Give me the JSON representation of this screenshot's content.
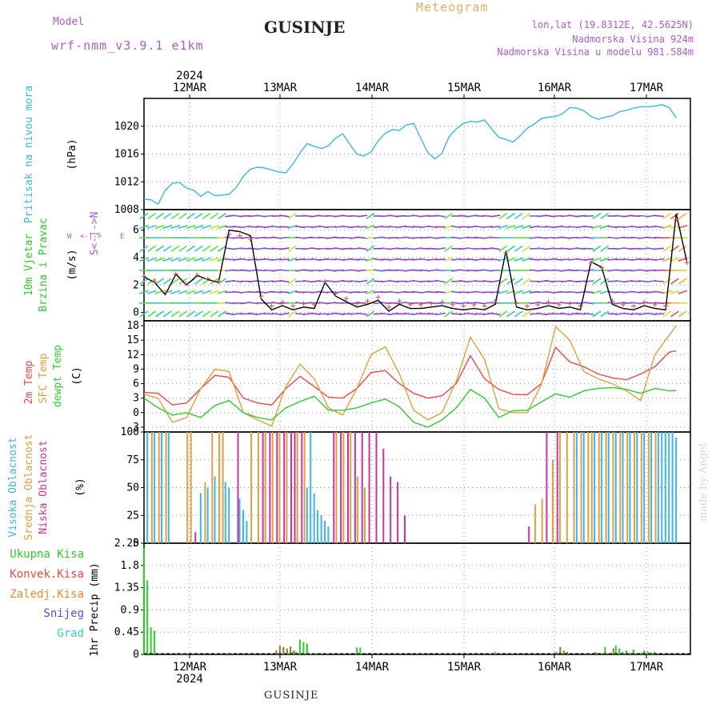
{
  "header": {
    "title": "GUSINJE",
    "meteogram_label": "Meteogram",
    "model_label": "Model",
    "model_name": "wrf-nmm_v3.9.1 e1km",
    "info_lines": [
      "lon,lat (19.8312E, 42.5625N)",
      "Nadmorska Visina 924m",
      "Nadmorska Visina u modelu 981.584m"
    ]
  },
  "footer": {
    "location": "GUSINJE",
    "credit": "made by Angel"
  },
  "time_axis": {
    "year_label": "2024",
    "day_labels": [
      "12MAR",
      "13MAR",
      "14MAR",
      "15MAR",
      "16MAR",
      "17MAR"
    ]
  },
  "panels": {
    "pressure": {
      "labels": [
        "Pritisak na nivou mora",
        "(hPa)"
      ],
      "colors": [
        "#3fb5e6",
        "#000000"
      ]
    },
    "wind": {
      "labels": [
        "10m Vjetar",
        "Brzina i Pravac",
        "(m/s)"
      ],
      "colors": [
        "#2ecc2e",
        "#2ecc2e",
        "#000000"
      ],
      "compass": [
        "W",
        "<-|->",
        "E",
        "S<-|->N"
      ]
    },
    "temp": {
      "labels": [
        "2m Temp",
        "SFC Temp",
        "dewpt Temp",
        "(C)"
      ],
      "colors": [
        "#f04848",
        "#e0a040",
        "#2ecc2e",
        "#000000"
      ]
    },
    "cloud": {
      "labels": [
        "Visoka Oblacnost",
        "Srednja Oblacnost",
        "Niska Oblacnost",
        "(%)"
      ],
      "colors": [
        "#3fb5e6",
        "#e0a040",
        "#d030a0",
        "#000000"
      ]
    },
    "precip": {
      "labels": [
        "1hr Precip (mm)"
      ],
      "legend": [
        "Ukupna Kisa",
        "Konvek.Kisa",
        "Zaledj.Kisa",
        "Snijeg",
        "Grad"
      ],
      "legend_colors": [
        "#2ecc2e",
        "#f04848",
        "#f08a30",
        "#5050e0",
        "#40c8c8"
      ]
    }
  },
  "chart_data": [
    {
      "type": "line",
      "name": "pressure",
      "ylim": [
        1008,
        1024
      ],
      "yticks": [
        "1008",
        "1012",
        "1016",
        "1020"
      ],
      "x_hours": [
        0,
        2,
        4,
        6,
        8,
        10,
        12,
        14,
        16,
        18,
        20,
        22,
        24,
        26,
        28,
        30,
        32,
        34,
        36,
        38,
        40,
        42,
        44,
        46,
        48,
        50,
        52,
        54,
        56,
        58,
        60,
        62,
        64,
        66,
        68,
        70,
        72,
        74,
        76,
        78,
        80,
        82,
        84,
        86,
        88,
        90,
        92,
        94,
        96,
        98,
        100,
        102,
        104,
        106,
        108,
        110,
        112,
        114,
        116,
        118,
        120,
        122,
        124,
        126,
        128,
        130,
        132,
        134,
        136,
        138,
        140,
        142,
        144,
        146,
        148,
        150
      ],
      "series": [
        {
          "name": "Pritisak na nivou mora",
          "color": "#3fb5e6",
          "values": [
            1009.5,
            1009.4,
            1008.8,
            1010.8,
            1011.8,
            1011.9,
            1011.1,
            1010.8,
            1009.9,
            1010.6,
            1010.0,
            1010.1,
            1010.2,
            1011.2,
            1012.8,
            1013.8,
            1014.1,
            1014.0,
            1013.7,
            1013.4,
            1013.3,
            1014.6,
            1016.2,
            1017.5,
            1017.1,
            1016.8,
            1017.2,
            1018.3,
            1018.9,
            1017.4,
            1016.0,
            1015.7,
            1016.3,
            1017.9,
            1019.0,
            1019.5,
            1019.4,
            1020.2,
            1020.4,
            1018.3,
            1016.2,
            1015.3,
            1016.1,
            1018.5,
            1019.6,
            1020.4,
            1020.7,
            1020.6,
            1020.9,
            1019.6,
            1018.4,
            1018.1,
            1017.7,
            1018.6,
            1019.7,
            1020.3,
            1021.1,
            1021.3,
            1021.4,
            1021.8,
            1022.7,
            1022.6,
            1022.2,
            1021.4,
            1021.0,
            1021.3,
            1021.5,
            1022.1,
            1022.3,
            1022.6,
            1022.8,
            1022.8,
            1022.9,
            1023.1,
            1022.7,
            1021.2
          ]
        }
      ]
    },
    {
      "type": "line",
      "name": "wind",
      "ylim": [
        -0.6,
        7.5
      ],
      "yticks": [
        "0",
        "2",
        "4",
        "6"
      ],
      "x_hours": [
        0,
        3,
        6,
        9,
        12,
        15,
        18,
        21,
        24,
        27,
        30,
        33,
        36,
        39,
        42,
        45,
        48,
        51,
        54,
        57,
        60,
        63,
        66,
        69,
        72,
        75,
        78,
        81,
        84,
        87,
        90,
        93,
        96,
        99,
        102,
        105,
        108,
        111,
        114,
        117,
        120,
        123,
        126,
        129,
        132,
        135,
        138,
        141,
        144,
        147,
        150,
        153
      ],
      "series": [
        {
          "name": "10m Vjetar",
          "color": "#000000",
          "values": [
            2.6,
            2.2,
            1.3,
            2.8,
            2.0,
            2.7,
            2.4,
            2.2,
            6.0,
            5.9,
            5.6,
            1.0,
            0.2,
            0.5,
            0.2,
            0.4,
            0.3,
            2.2,
            1.2,
            0.8,
            0.4,
            0.6,
            0.9,
            0.1,
            0.6,
            0.3,
            0.3,
            0.4,
            0.5,
            0.3,
            0.2,
            0.3,
            0.2,
            0.6,
            4.5,
            0.4,
            0.2,
            0.3,
            0.5,
            0.3,
            0.4,
            0.2,
            3.7,
            3.3,
            0.6,
            0.3,
            0.2,
            0.5,
            0.3,
            0.2,
            7.2,
            3.7
          ]
        }
      ]
    },
    {
      "type": "line",
      "name": "temperature",
      "ylim": [
        -4,
        19
      ],
      "yticks": [
        "-3",
        "0",
        "3",
        "6",
        "9",
        "12",
        "15",
        "18"
      ],
      "x_hours": [
        0,
        4,
        8,
        12,
        16,
        20,
        24,
        28,
        32,
        36,
        40,
        44,
        48,
        52,
        56,
        60,
        64,
        68,
        72,
        76,
        80,
        84,
        88,
        92,
        96,
        100,
        104,
        108,
        112,
        116,
        120,
        124,
        128,
        132,
        136,
        140,
        144,
        148,
        150
      ],
      "series": [
        {
          "name": "2m Temp",
          "color": "#f04848",
          "values": [
            4.2,
            4.0,
            1.6,
            2.0,
            5.0,
            7.7,
            7.3,
            3.0,
            2.0,
            1.6,
            5.0,
            7.5,
            5.4,
            3.2,
            3.0,
            5.0,
            8.3,
            8.7,
            6.0,
            4.0,
            3.0,
            3.5,
            6.0,
            11.8,
            7.0,
            4.8,
            3.8,
            3.7,
            6.0,
            13.5,
            10.5,
            9.5,
            8.0,
            7.2,
            6.8,
            8.0,
            9.5,
            12.5,
            12.8
          ]
        },
        {
          "name": "SFC Temp",
          "color": "#e0a040",
          "values": [
            3.8,
            3.0,
            -2.0,
            -1.0,
            5.0,
            9.0,
            8.5,
            0.0,
            -1.5,
            -2.8,
            5.5,
            10.0,
            7.0,
            1.0,
            -0.5,
            5.0,
            12.0,
            13.6,
            8.0,
            0.5,
            -1.5,
            0.0,
            6.5,
            15.6,
            11.0,
            0.8,
            0.0,
            0.0,
            5.8,
            17.8,
            15.0,
            8.5,
            7.0,
            6.0,
            4.5,
            2.5,
            12.0,
            16.0,
            18.0
          ]
        },
        {
          "name": "dewpt Temp",
          "color": "#2ecc2e",
          "values": [
            3.0,
            1.0,
            -0.5,
            0.0,
            -1.0,
            1.5,
            2.5,
            0.0,
            -1.0,
            -1.5,
            1.0,
            2.3,
            3.4,
            0.5,
            0.5,
            1.0,
            2.0,
            2.8,
            1.2,
            -2.0,
            -3.0,
            -1.5,
            1.0,
            4.8,
            3.0,
            -1.0,
            0.4,
            0.5,
            2.2,
            3.9,
            3.2,
            4.5,
            5.0,
            5.2,
            4.8,
            4.0,
            5.0,
            4.5,
            4.6
          ]
        }
      ]
    },
    {
      "type": "bar",
      "name": "cloud",
      "ylim": [
        0,
        100
      ],
      "yticks": [
        "0",
        "25",
        "50",
        "75",
        "100"
      ],
      "series": [
        {
          "name": "Visoka Oblacnost",
          "color": "#3fb5e6",
          "hours": [
            1,
            3,
            5,
            7,
            16,
            18,
            20,
            23,
            24,
            27,
            28,
            29,
            46,
            47,
            48,
            49,
            50,
            51,
            52,
            122,
            124,
            127,
            129,
            131,
            133,
            135,
            137,
            139,
            141,
            143,
            145,
            146,
            147,
            148,
            149,
            150
          ],
          "values": [
            100,
            100,
            100,
            100,
            45,
            50,
            60,
            55,
            50,
            40,
            30,
            20,
            50,
            100,
            45,
            30,
            25,
            20,
            15,
            100,
            100,
            100,
            100,
            100,
            100,
            100,
            100,
            100,
            100,
            100,
            100,
            100,
            100,
            100,
            100,
            95
          ]
        },
        {
          "name": "Srednja Oblacnost",
          "color": "#e0a040",
          "hours": [
            2,
            4,
            6,
            12,
            13,
            17,
            19,
            21,
            22,
            30,
            32,
            34,
            36,
            38,
            40,
            43,
            45,
            54,
            56,
            58,
            60,
            62,
            110,
            112,
            115,
            117,
            119,
            121,
            123,
            125,
            126,
            128,
            130,
            132,
            134,
            136,
            138,
            140,
            142,
            144
          ],
          "values": [
            100,
            100,
            100,
            100,
            100,
            55,
            100,
            100,
            100,
            100,
            100,
            100,
            100,
            100,
            100,
            100,
            100,
            100,
            100,
            100,
            60,
            50,
            35,
            40,
            75,
            100,
            100,
            100,
            100,
            100,
            100,
            100,
            100,
            100,
            100,
            100,
            100,
            100,
            100,
            100
          ]
        },
        {
          "name": "Niska Oblacnost",
          "color": "#d030a0",
          "hours": [
            14,
            26,
            33,
            35,
            37,
            39,
            41,
            42,
            44,
            53,
            55,
            57,
            59,
            61,
            63,
            65,
            67,
            69,
            71,
            73,
            108,
            113,
            116
          ],
          "values": [
            10,
            100,
            100,
            100,
            100,
            100,
            100,
            100,
            100,
            100,
            100,
            100,
            100,
            100,
            100,
            100,
            85,
            60,
            55,
            25,
            15,
            100,
            100
          ]
        }
      ]
    },
    {
      "type": "bar",
      "name": "precip",
      "ylim": [
        0,
        2.25
      ],
      "yticks": [
        "0",
        "0.45",
        "0.9",
        "1.35",
        "1.8",
        "2.25"
      ],
      "series": [
        {
          "name": "Ukupna Kisa",
          "color": "#2ecc2e",
          "hours": [
            0,
            1,
            2,
            3,
            24,
            42,
            43,
            44,
            45,
            46,
            47,
            48,
            60,
            61,
            99,
            125,
            130,
            133,
            134,
            135,
            136,
            137,
            138,
            140,
            141,
            142,
            143,
            144
          ],
          "values": [
            2.15,
            1.5,
            0.55,
            0.48,
            0.02,
            0.05,
            0.05,
            0.3,
            0.25,
            0.22,
            0.02,
            0.02,
            0.14,
            0.14,
            0.05,
            0.03,
            0.15,
            0.18,
            0.12,
            0.05,
            0.08,
            0.04,
            0.1,
            0.03,
            0.08,
            0.06,
            0.04,
            0.05
          ]
        },
        {
          "name": "Konvek.Kisa",
          "color": "#f04848",
          "hours": [],
          "values": []
        },
        {
          "name": "Zaledj.Kisa",
          "color": "#f08a30",
          "hours": [],
          "values": []
        },
        {
          "name": "Snijeg",
          "color": "#5050e0",
          "hours": [],
          "values": []
        },
        {
          "name": "Grad",
          "color": "#40c8c8",
          "hours": [],
          "values": []
        },
        {
          "name": "mixed",
          "color": "#8a7a30",
          "hours": [
            7,
            8,
            9,
            10,
            36,
            37,
            38,
            39,
            40,
            41,
            50,
            114,
            115,
            116,
            117,
            118,
            124,
            126,
            131,
            139
          ],
          "values": [
            0.02,
            0.03,
            0.02,
            0.02,
            0.08,
            0.18,
            0.15,
            0.12,
            0.16,
            0.08,
            0.02,
            0.02,
            0.05,
            0.15,
            0.08,
            0.05,
            0.02,
            0.05,
            0.12,
            0.03
          ]
        }
      ]
    }
  ]
}
